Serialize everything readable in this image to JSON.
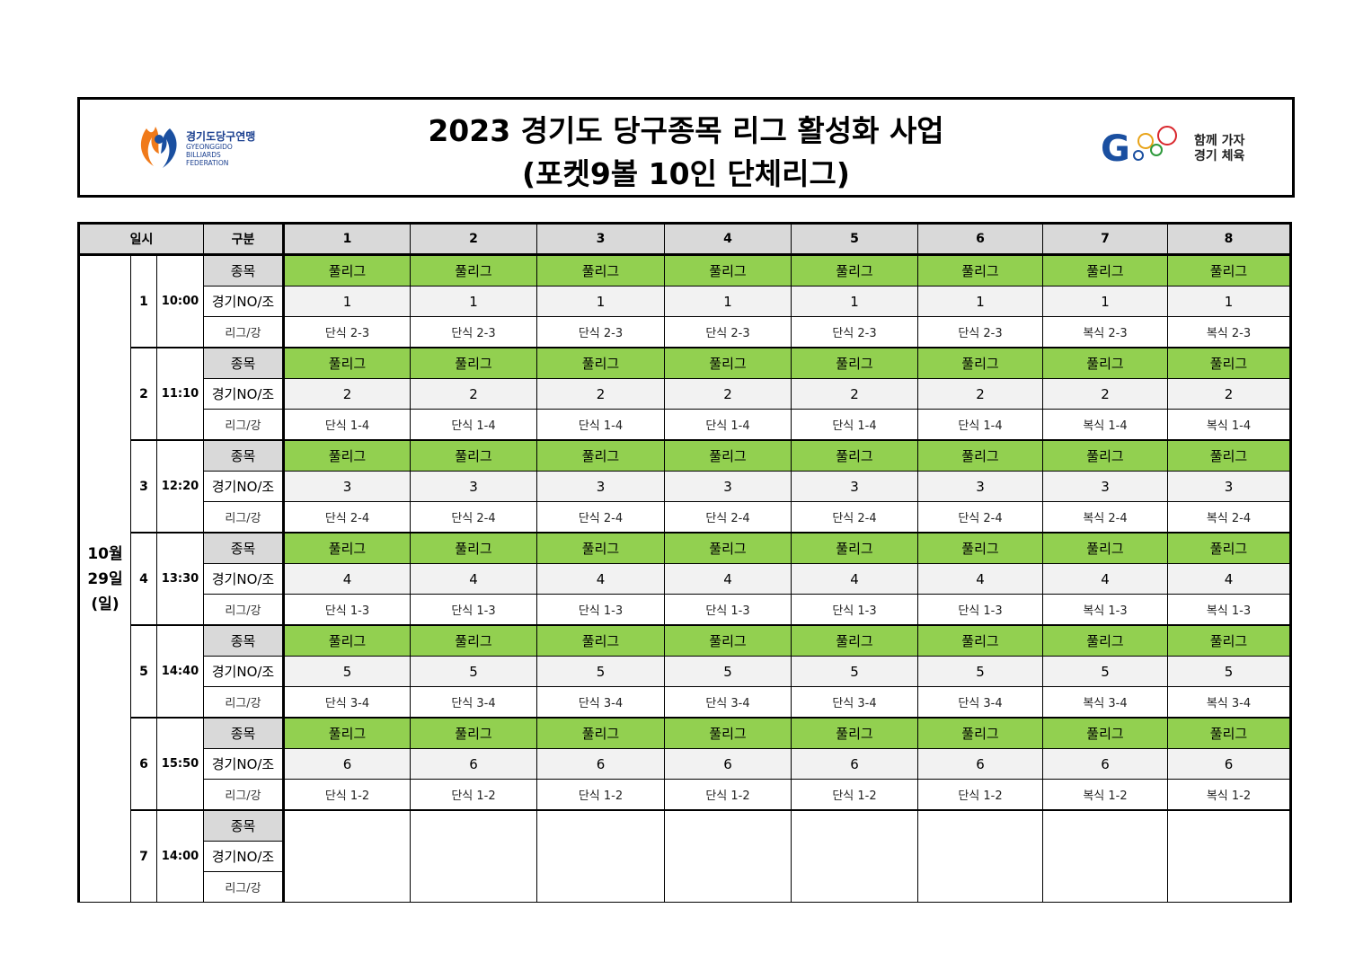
{
  "header": {
    "title_line1": "2023 경기도 당구종목 리그 활성화 사업",
    "title_line2": "(포켓9볼 10인 단체리그)",
    "left_logo": {
      "name": "경기도당구연맹",
      "sub1": "GYEONGGIDO",
      "sub2": "BILLIARDS",
      "sub3": "FEDERATION"
    },
    "right_logo": {
      "line1": "함께 가자",
      "line2": "경기 체육"
    }
  },
  "table": {
    "col_date": "일시",
    "col_category": "구분",
    "columns": [
      "1",
      "2",
      "3",
      "4",
      "5",
      "6",
      "7",
      "8"
    ],
    "date_lines": [
      "10월",
      "29일",
      "(일)"
    ],
    "row_labels": {
      "event": "종목",
      "match": "경기NO/조",
      "league": "리그/강"
    },
    "sessions": [
      {
        "num": "1",
        "time": "10:00",
        "event": [
          "풀리그",
          "풀리그",
          "풀리그",
          "풀리그",
          "풀리그",
          "풀리그",
          "풀리그",
          "풀리그"
        ],
        "match": [
          "1",
          "1",
          "1",
          "1",
          "1",
          "1",
          "1",
          "1"
        ],
        "league": [
          "단식 2-3",
          "단식 2-3",
          "단식 2-3",
          "단식 2-3",
          "단식 2-3",
          "단식 2-3",
          "복식 2-3",
          "복식 2-3"
        ]
      },
      {
        "num": "2",
        "time": "11:10",
        "event": [
          "풀리그",
          "풀리그",
          "풀리그",
          "풀리그",
          "풀리그",
          "풀리그",
          "풀리그",
          "풀리그"
        ],
        "match": [
          "2",
          "2",
          "2",
          "2",
          "2",
          "2",
          "2",
          "2"
        ],
        "league": [
          "단식 1-4",
          "단식 1-4",
          "단식 1-4",
          "단식 1-4",
          "단식 1-4",
          "단식 1-4",
          "복식 1-4",
          "복식 1-4"
        ]
      },
      {
        "num": "3",
        "time": "12:20",
        "event": [
          "풀리그",
          "풀리그",
          "풀리그",
          "풀리그",
          "풀리그",
          "풀리그",
          "풀리그",
          "풀리그"
        ],
        "match": [
          "3",
          "3",
          "3",
          "3",
          "3",
          "3",
          "3",
          "3"
        ],
        "league": [
          "단식 2-4",
          "단식 2-4",
          "단식 2-4",
          "단식 2-4",
          "단식 2-4",
          "단식 2-4",
          "복식 2-4",
          "복식 2-4"
        ]
      },
      {
        "num": "4",
        "time": "13:30",
        "event": [
          "풀리그",
          "풀리그",
          "풀리그",
          "풀리그",
          "풀리그",
          "풀리그",
          "풀리그",
          "풀리그"
        ],
        "match": [
          "4",
          "4",
          "4",
          "4",
          "4",
          "4",
          "4",
          "4"
        ],
        "league": [
          "단식 1-3",
          "단식 1-3",
          "단식 1-3",
          "단식 1-3",
          "단식 1-3",
          "단식 1-3",
          "복식 1-3",
          "복식 1-3"
        ]
      },
      {
        "num": "5",
        "time": "14:40",
        "event": [
          "풀리그",
          "풀리그",
          "풀리그",
          "풀리그",
          "풀리그",
          "풀리그",
          "풀리그",
          "풀리그"
        ],
        "match": [
          "5",
          "5",
          "5",
          "5",
          "5",
          "5",
          "5",
          "5"
        ],
        "league": [
          "단식 3-4",
          "단식 3-4",
          "단식 3-4",
          "단식 3-4",
          "단식 3-4",
          "단식 3-4",
          "복식 3-4",
          "복식 3-4"
        ]
      },
      {
        "num": "6",
        "time": "15:50",
        "event": [
          "풀리그",
          "풀리그",
          "풀리그",
          "풀리그",
          "풀리그",
          "풀리그",
          "풀리그",
          "풀리그"
        ],
        "match": [
          "6",
          "6",
          "6",
          "6",
          "6",
          "6",
          "6",
          "6"
        ],
        "league": [
          "단식 1-2",
          "단식 1-2",
          "단식 1-2",
          "단식 1-2",
          "단식 1-2",
          "단식 1-2",
          "복식 1-2",
          "복식 1-2"
        ]
      },
      {
        "num": "7",
        "time": "14:00",
        "event": [
          "",
          "",
          "",
          "",
          "",
          "",
          "",
          ""
        ],
        "match": [
          "",
          "",
          "",
          "",
          "",
          "",
          "",
          ""
        ],
        "league": [
          "",
          "",
          "",
          "",
          "",
          "",
          "",
          ""
        ]
      }
    ]
  },
  "colors": {
    "green": "#92d050",
    "header_grey": "#d9d9d9",
    "row_grey": "#f2f2f2"
  }
}
